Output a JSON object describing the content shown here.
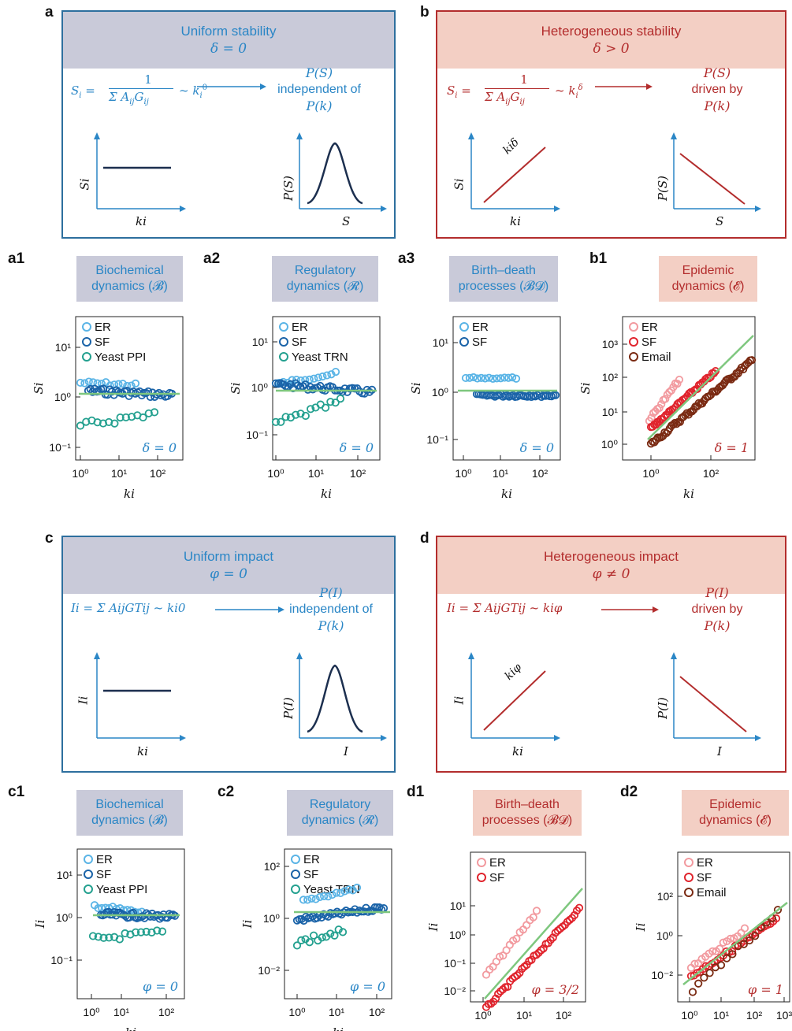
{
  "panels": {
    "a": {
      "label": "a",
      "title": "Uniform stability",
      "param": "δ = 0",
      "eq_lhs": "S",
      "eq_sub": "i",
      "eq_num": "1",
      "eq_den": "Σ AijGij",
      "eq_tail": "~ ki0",
      "result": [
        "P(S)",
        "independent of",
        "P(k)"
      ],
      "ylabel": "Si",
      "xlabel": "ki",
      "ylabel2": "P(S)",
      "xlabel2": "S"
    },
    "b": {
      "label": "b",
      "title": "Heterogeneous stability",
      "param": "δ > 0",
      "eq_lhs": "S",
      "eq_sub": "i",
      "eq_num": "1",
      "eq_den": "Σ AijGij",
      "eq_tail": "~ kiδ",
      "result": [
        "P(S)",
        "driven by",
        "P(k)"
      ],
      "ylabel": "Si",
      "xlabel": "ki",
      "line_label": "kiδ",
      "ylabel2": "P(S)",
      "xlabel2": "S"
    },
    "c": {
      "label": "c",
      "title": "Uniform impact",
      "param": "φ = 0",
      "eq": "Ii = Σ AijGTij ~ ki0",
      "result": [
        "P(I)",
        "independent of",
        "P(k)"
      ],
      "ylabel": "Ii",
      "xlabel": "ki",
      "ylabel2": "P(I)",
      "xlabel2": "I"
    },
    "d": {
      "label": "d",
      "title": "Heterogeneous impact",
      "param": "φ ≠ 0",
      "eq": "Ii = Σ AijGTij ~ kiφ",
      "result": [
        "P(I)",
        "driven by",
        "P(k)"
      ],
      "ylabel": "Ii",
      "xlabel": "ki",
      "line_label": "kiφ",
      "ylabel2": "P(I)",
      "xlabel2": "I"
    }
  },
  "subpanels": {
    "a1": {
      "label": "a1",
      "tag": [
        "Biochemical",
        "dynamics (𝓑)"
      ],
      "legend": [
        "ER",
        "SF",
        "Yeast PPI"
      ],
      "exponent": "δ = 0",
      "ylabel": "Si",
      "xlabel": "ki",
      "yticks": [
        "10⁻¹",
        "10⁰",
        "10¹"
      ],
      "xticks": [
        "10⁰",
        "10¹",
        "10²"
      ]
    },
    "a2": {
      "label": "a2",
      "tag": [
        "Regulatory",
        "dynamics (𝓡)"
      ],
      "legend": [
        "ER",
        "SF",
        "Yeast TRN"
      ],
      "exponent": "δ = 0",
      "ylabel": "Si",
      "xlabel": "ki",
      "yticks": [
        "10⁻¹",
        "10⁰",
        "10¹"
      ],
      "xticks": [
        "10⁰",
        "10¹",
        "10²"
      ]
    },
    "a3": {
      "label": "a3",
      "tag": [
        "Birth–death",
        "processes (𝓑𝓓)"
      ],
      "legend": [
        "ER",
        "SF"
      ],
      "exponent": "δ = 0",
      "ylabel": "Si",
      "xlabel": "ki",
      "yticks": [
        "10⁻¹",
        "10⁰",
        "10¹"
      ],
      "xticks": [
        "10⁰",
        "10¹",
        "10²"
      ]
    },
    "b1": {
      "label": "b1",
      "tag": [
        "Epidemic",
        "dynamics (𝓔)"
      ],
      "legend": [
        "ER",
        "SF",
        "Email"
      ],
      "exponent": "δ = 1",
      "ylabel": "Si",
      "xlabel": "ki",
      "yticks": [
        "10⁰",
        "10¹",
        "10²",
        "10³"
      ],
      "xticks": [
        "10⁰",
        "10²"
      ]
    },
    "c1": {
      "label": "c1",
      "tag": [
        "Biochemical",
        "dynamics (𝓑)"
      ],
      "legend": [
        "ER",
        "SF",
        "Yeast PPI"
      ],
      "exponent": "φ = 0",
      "ylabel": "Ii",
      "xlabel": "ki",
      "yticks": [
        "10⁻¹",
        "10⁰",
        "10¹"
      ],
      "xticks": [
        "10⁰",
        "10¹",
        "10²"
      ]
    },
    "c2": {
      "label": "c2",
      "tag": [
        "Regulatory",
        "dynamics (𝓡)"
      ],
      "legend": [
        "ER",
        "SF",
        "Yeast TRN"
      ],
      "exponent": "φ = 0",
      "ylabel": "Ii",
      "xlabel": "ki",
      "yticks": [
        "10⁻²",
        "10⁰",
        "10²"
      ],
      "xticks": [
        "10⁰",
        "10¹",
        "10²"
      ]
    },
    "d1": {
      "label": "d1",
      "tag": [
        "Birth–death",
        "processes (𝓑𝓓)"
      ],
      "legend": [
        "ER",
        "SF"
      ],
      "exponent": "φ = 3/2",
      "ylabel": "Ii",
      "xlabel": "ki",
      "yticks": [
        "10⁻²",
        "10⁻¹",
        "10⁰",
        "10¹"
      ],
      "xticks": [
        "10⁰",
        "10¹",
        "10²"
      ]
    },
    "d2": {
      "label": "d2",
      "tag": [
        "Epidemic",
        "dynamics (𝓔)"
      ],
      "legend": [
        "ER",
        "SF",
        "Email"
      ],
      "exponent": "φ = 1",
      "ylabel": "Ii",
      "xlabel": "ki",
      "yticks": [
        "10⁻²",
        "10⁰",
        "10²"
      ],
      "xticks": [
        "10⁰",
        "10¹",
        "10²",
        "10³"
      ]
    }
  },
  "colors": {
    "blue": "#2a86c6",
    "red": "#b32d2d",
    "er_blue": "#5ab4e6",
    "sf_blue": "#1a63a8",
    "yeast": "#23a08f",
    "er_red": "#f29a9f",
    "sf_red": "#e0242d",
    "email": "#7a2a12",
    "fit": "#7ec77e",
    "curve": "#1c2f4f"
  }
}
